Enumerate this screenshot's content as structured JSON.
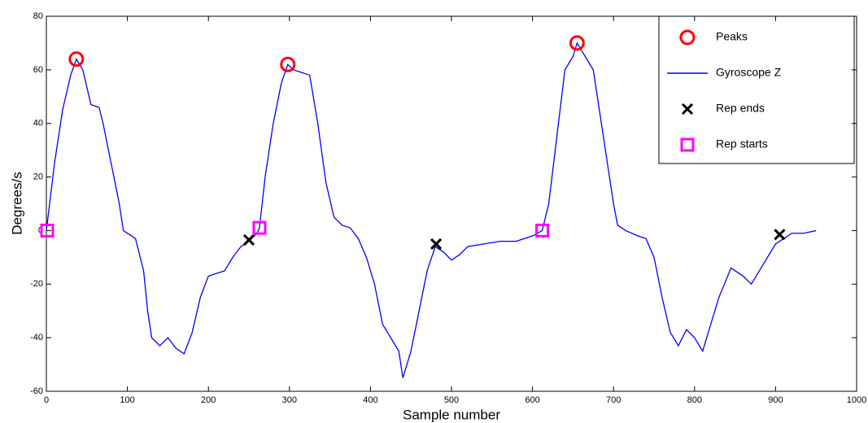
{
  "chart_data": {
    "type": "line",
    "xlabel": "Sample number",
    "ylabel": "Degrees/s",
    "xlim": [
      0,
      1000
    ],
    "xticks": [
      0,
      100,
      200,
      300,
      400,
      500,
      600,
      700,
      800,
      900,
      1000
    ],
    "ylim": [
      -60,
      80
    ],
    "yticks": [
      -60,
      -40,
      -20,
      0,
      20,
      40,
      60,
      80
    ],
    "legend": "upper right",
    "series": [
      {
        "name": "Peaks",
        "color": "#ff0000",
        "marker": "circle",
        "x": [
          37,
          298,
          655
        ],
        "values": [
          64,
          62,
          70
        ]
      },
      {
        "name": "Gyroscope Z",
        "color": "#0000ff",
        "marker": "line",
        "x": [
          0,
          10,
          20,
          30,
          37,
          45,
          55,
          65,
          70,
          80,
          90,
          95,
          100,
          110,
          120,
          125,
          130,
          140,
          150,
          160,
          170,
          180,
          190,
          200,
          210,
          220,
          230,
          240,
          250,
          260,
          263,
          270,
          280,
          290,
          298,
          305,
          315,
          325,
          335,
          345,
          355,
          365,
          375,
          385,
          395,
          405,
          415,
          425,
          435,
          440,
          450,
          460,
          470,
          480,
          490,
          500,
          510,
          520,
          540,
          560,
          580,
          600,
          612,
          620,
          630,
          640,
          650,
          655,
          665,
          675,
          685,
          695,
          700,
          705,
          715,
          730,
          740,
          750,
          760,
          770,
          780,
          790,
          800,
          810,
          820,
          830,
          845,
          860,
          870,
          880,
          890,
          900,
          910,
          920,
          935,
          950
        ],
        "values": [
          0,
          25,
          45,
          58,
          64,
          60,
          47,
          46,
          40,
          25,
          10,
          0,
          -1,
          -3,
          -15,
          -30,
          -40,
          -43,
          -40,
          -44,
          -46,
          -38,
          -25,
          -17,
          -16,
          -15,
          -10,
          -6,
          -4,
          -1,
          1,
          20,
          40,
          55,
          62,
          60,
          59,
          58,
          40,
          18,
          5,
          2,
          1,
          -3,
          -10,
          -20,
          -35,
          -40,
          -45,
          -55,
          -45,
          -30,
          -15,
          -6,
          -8,
          -11,
          -9,
          -6,
          -5,
          -4,
          -4,
          -2,
          0,
          10,
          35,
          60,
          65,
          70,
          65,
          60,
          40,
          20,
          10,
          2,
          0,
          -2,
          -3,
          -10,
          -25,
          -38,
          -43,
          -37,
          -40,
          -45,
          -35,
          -25,
          -14,
          -17,
          -20,
          -15,
          -10,
          -5,
          -3,
          -1,
          -1,
          0
        ]
      },
      {
        "name": "Rep ends",
        "color": "#000000",
        "marker": "x",
        "x": [
          250,
          481,
          905
        ],
        "values": [
          -3.5,
          -5,
          -1.5
        ]
      },
      {
        "name": "Rep starts",
        "color": "#ff00ff",
        "marker": "square",
        "x": [
          1,
          263,
          612
        ],
        "values": [
          0,
          1,
          0
        ]
      }
    ]
  }
}
